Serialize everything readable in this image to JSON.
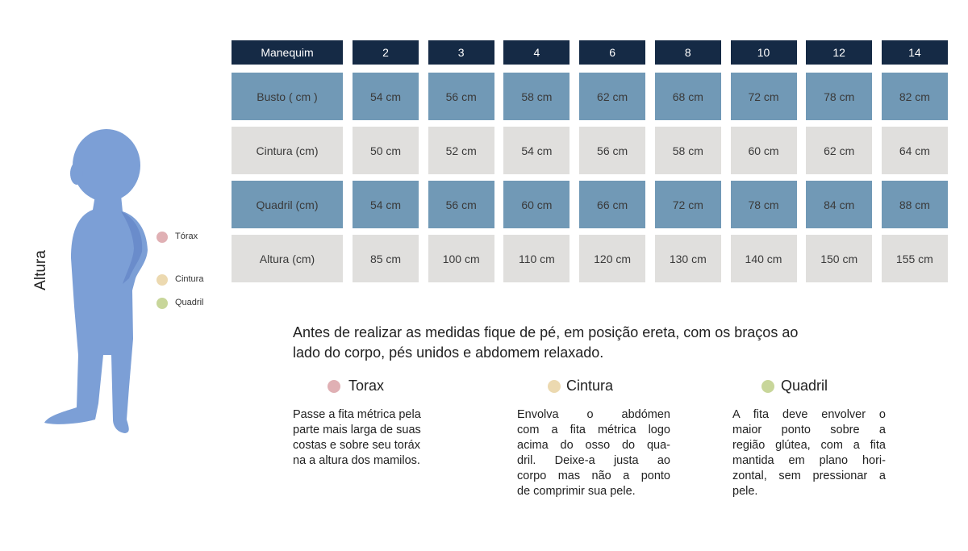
{
  "table": {
    "header": [
      "Manequim",
      "2",
      "3",
      "4",
      "6",
      "8",
      "10",
      "12",
      "14"
    ],
    "rows": [
      [
        "Busto ( cm )",
        "54 cm",
        "56 cm",
        "58 cm",
        "62 cm",
        "68 cm",
        "72 cm",
        "78 cm",
        "82 cm"
      ],
      [
        "Cintura (cm)",
        "50 cm",
        "52 cm",
        "54 cm",
        "56 cm",
        "58 cm",
        "60 cm",
        "62 cm",
        "64 cm"
      ],
      [
        "Quadril (cm)",
        "54 cm",
        "56 cm",
        "60 cm",
        "66 cm",
        "72 cm",
        "78 cm",
        "84 cm",
        "88 cm"
      ],
      [
        "Altura (cm)",
        "85 cm",
        "100 cm",
        "110 cm",
        "120 cm",
        "130 cm",
        "140 cm",
        "150 cm",
        "155 cm"
      ]
    ]
  },
  "figure": {
    "label": "Altura",
    "legend": [
      "Tórax",
      "Cintura",
      "Quadril"
    ]
  },
  "intro": [
    "Antes de realizar as medidas fique de pé, em posição ereta, com os braços ao",
    "lado do corpo, pés unidos e abdomem relaxado."
  ],
  "sections": [
    {
      "title": "Torax",
      "lines": [
        "Passe a fita métrica pela",
        "parte mais larga de suas",
        "costas e sobre seu toráx",
        "na a altura dos mamilos."
      ]
    },
    {
      "title": "Cintura",
      "lines": [
        "Envolva o abdómen",
        "com a fita métrica logo",
        "acima do osso do qua-",
        "dril. Deixe-a justa ao",
        "corpo mas não a ponto",
        "de comprimir sua pele."
      ]
    },
    {
      "title": "Quadril",
      "lines": [
        "A fita deve envolver o",
        "maior ponto sobre a",
        "região glútea, com a fita",
        "mantida em plano hori-",
        "zontal, sem pressionar a",
        "pele."
      ]
    }
  ]
}
